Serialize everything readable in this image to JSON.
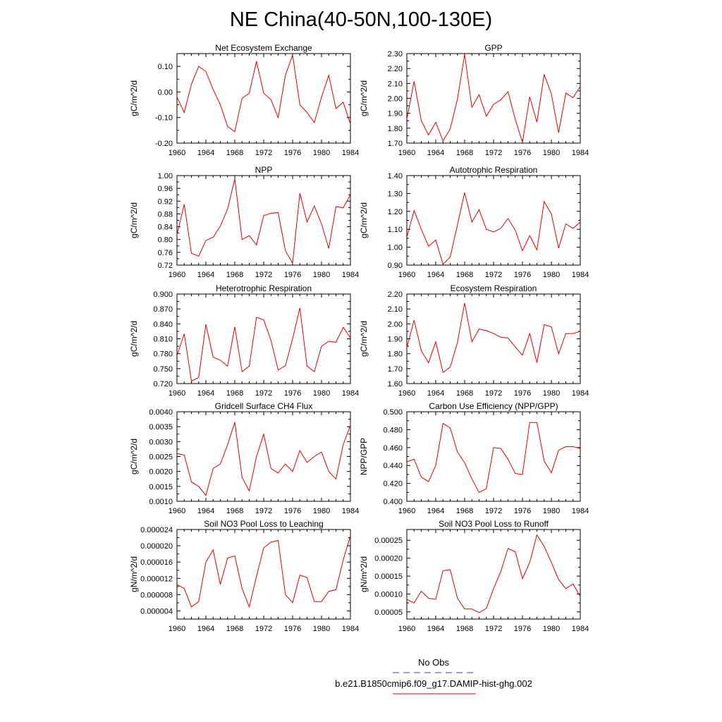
{
  "title": "NE China(40-50N,100-130E)",
  "legend": [
    {
      "label": "No Obs",
      "color": "#3a3ad0",
      "style": "dashed"
    },
    {
      "label": "b.e21.B1850cmip6.f09_g17.DAMIP-hist-ghg.002",
      "color": "#e00000",
      "style": "solid"
    }
  ],
  "chart_data": [
    {
      "type": "line",
      "title": "Net Ecosystem Exchange",
      "ylabel": "gC/m^2/d",
      "ylim": [
        -0.2,
        0.15
      ],
      "yticks": [
        -0.2,
        -0.1,
        0.0,
        0.1
      ],
      "ytick_labels": [
        "-0.20",
        "-0.10",
        "0.00",
        "0.10"
      ],
      "xlim": [
        1960,
        1984
      ],
      "xticks": [
        1960,
        1964,
        1968,
        1972,
        1976,
        1980,
        1984
      ],
      "x": [
        1960,
        1961,
        1962,
        1963,
        1964,
        1965,
        1966,
        1967,
        1968,
        1969,
        1970,
        1971,
        1972,
        1973,
        1974,
        1975,
        1976,
        1977,
        1978,
        1979,
        1980,
        1981,
        1982,
        1983,
        1984
      ],
      "series": [
        {
          "color": "#e00000",
          "values": [
            -0.02,
            -0.08,
            0.03,
            0.1,
            0.08,
            0.01,
            -0.05,
            -0.135,
            -0.155,
            -0.025,
            -0.005,
            0.12,
            -0.005,
            -0.03,
            -0.1,
            0.065,
            0.145,
            -0.05,
            -0.08,
            -0.12,
            -0.02,
            0.065,
            -0.065,
            -0.04,
            -0.125
          ]
        }
      ]
    },
    {
      "type": "line",
      "title": "GPP",
      "ylabel": "gC/m^2/d",
      "ylim": [
        1.7,
        2.3
      ],
      "yticks": [
        1.7,
        1.8,
        1.9,
        2.0,
        2.1,
        2.2,
        2.3
      ],
      "ytick_labels": [
        "1.70",
        "1.80",
        "1.90",
        "2.00",
        "2.10",
        "2.20",
        "2.30"
      ],
      "xlim": [
        1960,
        1984
      ],
      "xticks": [
        1960,
        1964,
        1968,
        1972,
        1976,
        1980,
        1984
      ],
      "x": [
        1960,
        1961,
        1962,
        1963,
        1964,
        1965,
        1966,
        1967,
        1968,
        1969,
        1970,
        1971,
        1972,
        1973,
        1974,
        1975,
        1976,
        1977,
        1978,
        1979,
        1980,
        1981,
        1982,
        1983,
        1984
      ],
      "series": [
        {
          "color": "#e00000",
          "values": [
            1.86,
            2.115,
            1.85,
            1.755,
            1.84,
            1.715,
            1.795,
            1.995,
            2.295,
            1.94,
            2.025,
            1.88,
            1.96,
            1.99,
            2.045,
            1.86,
            1.705,
            2.01,
            1.84,
            2.16,
            2.03,
            1.77,
            2.035,
            2.005,
            2.08
          ]
        }
      ]
    },
    {
      "type": "line",
      "title": "NPP",
      "ylabel": "gC/m^2/d",
      "ylim": [
        0.72,
        1.0
      ],
      "yticks": [
        0.72,
        0.76,
        0.8,
        0.84,
        0.88,
        0.92,
        0.96,
        1.0
      ],
      "ytick_labels": [
        "0.72",
        "0.76",
        "0.80",
        "0.84",
        "0.88",
        "0.92",
        "0.96",
        "1.00"
      ],
      "xlim": [
        1960,
        1984
      ],
      "xticks": [
        1960,
        1964,
        1968,
        1972,
        1976,
        1980,
        1984
      ],
      "x": [
        1960,
        1961,
        1962,
        1963,
        1964,
        1965,
        1966,
        1967,
        1968,
        1969,
        1970,
        1971,
        1972,
        1973,
        1974,
        1975,
        1976,
        1977,
        1978,
        1979,
        1980,
        1981,
        1982,
        1983,
        1984
      ],
      "series": [
        {
          "color": "#e00000",
          "values": [
            0.815,
            0.91,
            0.757,
            0.748,
            0.797,
            0.807,
            0.842,
            0.895,
            0.99,
            0.8,
            0.812,
            0.783,
            0.875,
            0.882,
            0.884,
            0.765,
            0.726,
            0.945,
            0.855,
            0.905,
            0.849,
            0.772,
            0.903,
            0.899,
            0.94
          ]
        }
      ]
    },
    {
      "type": "line",
      "title": "Autotrophic Respiration",
      "ylabel": "gC/m^2/d",
      "ylim": [
        0.9,
        1.4
      ],
      "yticks": [
        0.9,
        1.0,
        1.1,
        1.2,
        1.3,
        1.4
      ],
      "ytick_labels": [
        "0.90",
        "1.00",
        "1.10",
        "1.20",
        "1.30",
        "1.40"
      ],
      "xlim": [
        1960,
        1984
      ],
      "xticks": [
        1960,
        1964,
        1968,
        1972,
        1976,
        1980,
        1984
      ],
      "x": [
        1960,
        1961,
        1962,
        1963,
        1964,
        1965,
        1966,
        1967,
        1968,
        1969,
        1970,
        1971,
        1972,
        1973,
        1974,
        1975,
        1976,
        1977,
        1978,
        1979,
        1980,
        1981,
        1982,
        1983,
        1984
      ],
      "series": [
        {
          "color": "#e00000",
          "values": [
            1.055,
            1.205,
            1.1,
            1.005,
            1.04,
            0.905,
            0.945,
            1.125,
            1.305,
            1.14,
            1.21,
            1.1,
            1.085,
            1.105,
            1.16,
            1.095,
            0.98,
            1.065,
            0.985,
            1.255,
            1.185,
            0.995,
            1.13,
            1.105,
            1.14
          ]
        }
      ]
    },
    {
      "type": "line",
      "title": "Heterotrophic Respiration",
      "ylabel": "gC/m^2/d",
      "ylim": [
        0.72,
        0.9
      ],
      "yticks": [
        0.72,
        0.75,
        0.78,
        0.81,
        0.84,
        0.87,
        0.9
      ],
      "ytick_labels": [
        "0.720",
        "0.750",
        "0.780",
        "0.810",
        "0.840",
        "0.870",
        "0.900"
      ],
      "xlim": [
        1960,
        1984
      ],
      "xticks": [
        1960,
        1964,
        1968,
        1972,
        1976,
        1980,
        1984
      ],
      "x": [
        1960,
        1961,
        1962,
        1963,
        1964,
        1965,
        1966,
        1967,
        1968,
        1969,
        1970,
        1971,
        1972,
        1973,
        1974,
        1975,
        1976,
        1977,
        1978,
        1979,
        1980,
        1981,
        1982,
        1983,
        1984
      ],
      "series": [
        {
          "color": "#e00000",
          "values": [
            0.776,
            0.82,
            0.725,
            0.732,
            0.839,
            0.773,
            0.767,
            0.755,
            0.834,
            0.744,
            0.755,
            0.853,
            0.848,
            0.807,
            0.747,
            0.756,
            0.81,
            0.872,
            0.755,
            0.744,
            0.795,
            0.805,
            0.803,
            0.833,
            0.812
          ]
        }
      ]
    },
    {
      "type": "line",
      "title": "Ecosystem Respiration",
      "ylabel": "gC/m^2/d",
      "ylim": [
        1.6,
        2.2
      ],
      "yticks": [
        1.6,
        1.7,
        1.8,
        1.9,
        2.0,
        2.1,
        2.2
      ],
      "ytick_labels": [
        "1.60",
        "1.70",
        "1.80",
        "1.90",
        "2.00",
        "2.10",
        "2.20"
      ],
      "xlim": [
        1960,
        1984
      ],
      "xticks": [
        1960,
        1964,
        1968,
        1972,
        1976,
        1980,
        1984
      ],
      "x": [
        1960,
        1961,
        1962,
        1963,
        1964,
        1965,
        1966,
        1967,
        1968,
        1969,
        1970,
        1971,
        1972,
        1973,
        1974,
        1975,
        1976,
        1977,
        1978,
        1979,
        1980,
        1981,
        1982,
        1983,
        1984
      ],
      "series": [
        {
          "color": "#e00000",
          "values": [
            1.84,
            2.025,
            1.82,
            1.74,
            1.88,
            1.675,
            1.71,
            1.875,
            2.14,
            1.88,
            1.965,
            1.955,
            1.935,
            1.91,
            1.905,
            1.845,
            1.79,
            1.935,
            1.74,
            1.995,
            1.98,
            1.8,
            1.935,
            1.935,
            1.95
          ]
        }
      ]
    },
    {
      "type": "line",
      "title": "Gridcell Surface CH4 Flux",
      "ylabel": "gC/m^2/d",
      "ylim": [
        0.001,
        0.004
      ],
      "yticks": [
        0.001,
        0.0015,
        0.002,
        0.0025,
        0.003,
        0.0035,
        0.004
      ],
      "ytick_labels": [
        "0.0010",
        "0.0015",
        "0.0020",
        "0.0025",
        "0.0030",
        "0.0035",
        "0.0040"
      ],
      "xlim": [
        1960,
        1984
      ],
      "xticks": [
        1960,
        1964,
        1968,
        1972,
        1976,
        1980,
        1984
      ],
      "x": [
        1960,
        1961,
        1962,
        1963,
        1964,
        1965,
        1966,
        1967,
        1968,
        1969,
        1970,
        1971,
        1972,
        1973,
        1974,
        1975,
        1976,
        1977,
        1978,
        1979,
        1980,
        1981,
        1982,
        1983,
        1984
      ],
      "series": [
        {
          "color": "#e00000",
          "values": [
            0.0026,
            0.00255,
            0.00165,
            0.0015,
            0.0012,
            0.0021,
            0.00225,
            0.0029,
            0.00365,
            0.0018,
            0.00135,
            0.0025,
            0.00325,
            0.0021,
            0.00195,
            0.00225,
            0.002,
            0.0027,
            0.0023,
            0.0025,
            0.00265,
            0.002,
            0.00175,
            0.0029,
            0.00355
          ]
        }
      ]
    },
    {
      "type": "line",
      "title": "Carbon Use Efficiency (NPP/GPP)",
      "ylabel": "NPP/GPP",
      "ylim": [
        0.4,
        0.5
      ],
      "yticks": [
        0.4,
        0.42,
        0.44,
        0.46,
        0.48,
        0.5
      ],
      "ytick_labels": [
        "0.400",
        "0.420",
        "0.440",
        "0.460",
        "0.480",
        "0.500"
      ],
      "xlim": [
        1960,
        1984
      ],
      "xticks": [
        1960,
        1964,
        1968,
        1972,
        1976,
        1980,
        1984
      ],
      "x": [
        1960,
        1961,
        1962,
        1963,
        1964,
        1965,
        1966,
        1967,
        1968,
        1969,
        1970,
        1971,
        1972,
        1973,
        1974,
        1975,
        1976,
        1977,
        1978,
        1979,
        1980,
        1981,
        1982,
        1983,
        1984
      ],
      "series": [
        {
          "color": "#e00000",
          "values": [
            0.444,
            0.447,
            0.427,
            0.422,
            0.44,
            0.487,
            0.482,
            0.455,
            0.443,
            0.425,
            0.41,
            0.414,
            0.46,
            0.459,
            0.447,
            0.431,
            0.43,
            0.488,
            0.488,
            0.445,
            0.432,
            0.457,
            0.461,
            0.461,
            0.459
          ]
        }
      ]
    },
    {
      "type": "line",
      "title": "Soil NO3 Pool Loss to Leaching",
      "ylabel": "gN/m^2/d",
      "ylim": [
        2e-06,
        2.4e-05
      ],
      "yticks": [
        4e-06,
        8e-06,
        1.2e-05,
        1.6e-05,
        2e-05,
        2.4e-05
      ],
      "ytick_labels": [
        "0.000004",
        "0.000008",
        "0.000012",
        "0.000016",
        "0.000020",
        "0.000024"
      ],
      "xlim": [
        1960,
        1984
      ],
      "xticks": [
        1960,
        1964,
        1968,
        1972,
        1976,
        1980,
        1984
      ],
      "x": [
        1960,
        1961,
        1962,
        1963,
        1964,
        1965,
        1966,
        1967,
        1968,
        1969,
        1970,
        1971,
        1972,
        1973,
        1974,
        1975,
        1976,
        1977,
        1978,
        1979,
        1980,
        1981,
        1982,
        1983,
        1984
      ],
      "series": [
        {
          "color": "#e00000",
          "values": [
            1.05e-05,
            9.5e-06,
            5e-06,
            6.3e-06,
            1.6e-05,
            1.9e-05,
            1.05e-05,
            1.7e-05,
            1.75e-05,
            9.5e-06,
            5e-06,
            1.25e-05,
            1.95e-05,
            2.09e-05,
            2.13e-05,
            8e-06,
            6e-06,
            1.28e-05,
            1.22e-05,
            6.3e-06,
            6.3e-06,
            8.8e-06,
            9.2e-06,
            1.65e-05,
            2.25e-05
          ]
        }
      ]
    },
    {
      "type": "line",
      "title": "Soil NO3 Pool Loss to Runoff",
      "ylabel": "gN/m^2/d",
      "ylim": [
        3e-05,
        0.00028
      ],
      "yticks": [
        5e-05,
        0.0001,
        0.00015,
        0.0002,
        0.00025
      ],
      "ytick_labels": [
        "0.00005",
        "0.00010",
        "0.00015",
        "0.00020",
        "0.00025"
      ],
      "xlim": [
        1960,
        1984
      ],
      "xticks": [
        1960,
        1964,
        1968,
        1972,
        1976,
        1980,
        1984
      ],
      "x": [
        1960,
        1961,
        1962,
        1963,
        1964,
        1965,
        1966,
        1967,
        1968,
        1969,
        1970,
        1971,
        1972,
        1973,
        1974,
        1975,
        1976,
        1977,
        1978,
        1979,
        1980,
        1981,
        1982,
        1983,
        1984
      ],
      "series": [
        {
          "color": "#e00000",
          "values": [
            8.5e-05,
            7.5e-05,
            0.000108,
            8.8e-05,
            8.5e-05,
            0.000165,
            0.000168,
            8.8e-05,
            5.8e-05,
            5.8e-05,
            4.8e-05,
            6e-05,
            0.000115,
            0.000163,
            0.000227,
            0.000218,
            0.000143,
            0.000188,
            0.000265,
            0.000233,
            0.000188,
            0.00014,
            0.000115,
            0.000128,
            9.3e-05
          ]
        }
      ]
    }
  ]
}
